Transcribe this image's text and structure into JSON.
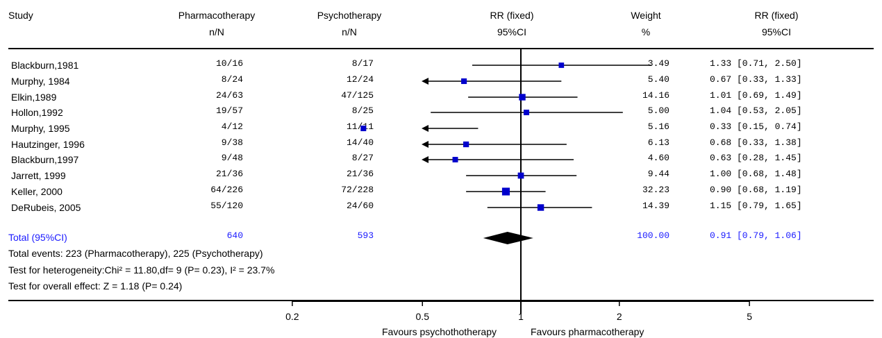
{
  "headers": {
    "study": "Study",
    "pharma_line1": "Pharmacotherapy",
    "pharma_line2": "n/N",
    "psycho_line1": "Psychotherapy",
    "psycho_line2": "n/N",
    "rr_plot_line1": "RR (fixed)",
    "rr_plot_line2": "95%CI",
    "weight_line1": "Weight",
    "weight_line2": "%",
    "rr_text_line1": "RR (fixed)",
    "rr_text_line2": "95%CI"
  },
  "rows": [
    {
      "study": "Blackburn,1981",
      "pharma": "10/16",
      "psycho": "8/17",
      "weight": "3.49",
      "ci": "1.33 [0.71, 2.50]"
    },
    {
      "study": "Murphy, 1984",
      "pharma": "8/24",
      "psycho": "12/24",
      "weight": "5.40",
      "ci": "0.67 [0.33, 1.33]"
    },
    {
      "study": "Elkin,1989",
      "pharma": "24/63",
      "psycho": "47/125",
      "weight": "14.16",
      "ci": "1.01 [0.69, 1.49]"
    },
    {
      "study": "Hollon,1992",
      "pharma": "19/57",
      "psycho": "8/25",
      "weight": "5.00",
      "ci": "1.04 [0.53, 2.05]"
    },
    {
      "study": "Murphy, 1995",
      "pharma": "4/12",
      "psycho": "11/11",
      "weight": "5.16",
      "ci": "0.33 [0.15, 0.74]"
    },
    {
      "study": "Hautzinger, 1996",
      "pharma": "9/38",
      "psycho": "14/40",
      "weight": "6.13",
      "ci": "0.68 [0.33, 1.38]"
    },
    {
      "study": "Blackburn,1997",
      "pharma": "9/48",
      "psycho": "8/27",
      "weight": "4.60",
      "ci": "0.63 [0.28, 1.45]"
    },
    {
      "study": "Jarrett, 1999",
      "pharma": "21/36",
      "psycho": "21/36",
      "weight": "9.44",
      "ci": "1.00 [0.68, 1.48]"
    },
    {
      "study": "Keller, 2000",
      "pharma": "64/226",
      "psycho": "72/228",
      "weight": "32.23",
      "ci": "0.90 [0.68, 1.19]"
    },
    {
      "study": "DeRubeis, 2005",
      "pharma": "55/120",
      "psycho": "24/60",
      "weight": "14.39",
      "ci": "1.15 [0.79, 1.65]"
    }
  ],
  "total": {
    "label": "Total (95%CI)",
    "pharma": "640",
    "psycho": "593",
    "weight": "100.00",
    "ci": "0.91 [0.79, 1.06]"
  },
  "notes": {
    "events": "Total events: 223 (Pharmacotherapy), 225 (Psychotherapy)",
    "heterogeneity": "Test for heterogeneity:Chi² = 11.80,df= 9 (P= 0.23), I² = 23.7%",
    "overall": "Test for overall effect: Z = 1.18 (P= 0.24)"
  },
  "axis": {
    "ticks": [
      0.2,
      0.5,
      1,
      2,
      5
    ],
    "favours_left": "Favours psychothotherapy",
    "favours_right": "Favours pharmacotherapy"
  },
  "colors": {
    "marker": "#0000cc",
    "total_text": "#1a1aff",
    "line": "#000000"
  },
  "chart_data": {
    "type": "forest",
    "scale": "log",
    "xlim": [
      0.2,
      5
    ],
    "studies": [
      {
        "name": "Blackburn,1981",
        "rr": 1.33,
        "lo": 0.71,
        "hi": 2.5,
        "weight": 3.49
      },
      {
        "name": "Murphy, 1984",
        "rr": 0.67,
        "lo": 0.33,
        "hi": 1.33,
        "weight": 5.4
      },
      {
        "name": "Elkin,1989",
        "rr": 1.01,
        "lo": 0.69,
        "hi": 1.49,
        "weight": 14.16
      },
      {
        "name": "Hollon,1992",
        "rr": 1.04,
        "lo": 0.53,
        "hi": 2.05,
        "weight": 5.0
      },
      {
        "name": "Murphy, 1995",
        "rr": 0.33,
        "lo": 0.15,
        "hi": 0.74,
        "weight": 5.16
      },
      {
        "name": "Hautzinger, 1996",
        "rr": 0.68,
        "lo": 0.33,
        "hi": 1.38,
        "weight": 6.13
      },
      {
        "name": "Blackburn,1997",
        "rr": 0.63,
        "lo": 0.28,
        "hi": 1.45,
        "weight": 4.6
      },
      {
        "name": "Jarrett, 1999",
        "rr": 1.0,
        "lo": 0.68,
        "hi": 1.48,
        "weight": 9.44
      },
      {
        "name": "Keller, 2000",
        "rr": 0.9,
        "lo": 0.68,
        "hi": 1.19,
        "weight": 32.23
      },
      {
        "name": "DeRubeis, 2005",
        "rr": 1.15,
        "lo": 0.79,
        "hi": 1.65,
        "weight": 14.39
      }
    ],
    "pooled": {
      "rr": 0.91,
      "lo": 0.79,
      "hi": 1.06
    }
  }
}
